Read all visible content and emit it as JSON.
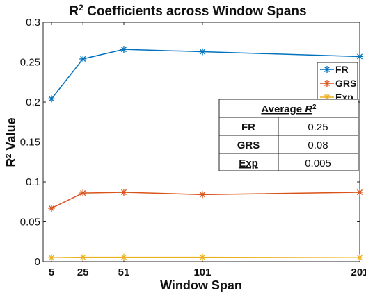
{
  "chart_data": {
    "type": "line",
    "title": "R",
    "title_sup": "2",
    "title_rest": " Coefficients across Window Spans",
    "xlabel": "Window Span",
    "ylabel": "R",
    "ylabel_sup": "2",
    "ylabel_rest": " Value",
    "x": [
      5,
      25,
      51,
      101,
      201
    ],
    "x_ticks": [
      "5",
      "25",
      "51",
      "101",
      "201"
    ],
    "ylim": [
      0,
      0.3
    ],
    "y_ticks": [
      "0",
      "0.05",
      "0.1",
      "0.15",
      "0.2",
      "0.25",
      "0.3"
    ],
    "grid": false,
    "legend_position": "top-right",
    "series": [
      {
        "name": "FR",
        "color": "#0072BD",
        "marker": "asterisk",
        "values": [
          0.204,
          0.254,
          0.266,
          0.263,
          0.257
        ]
      },
      {
        "name": "GRS",
        "color": "#D95319",
        "marker": "asterisk",
        "values": [
          0.067,
          0.086,
          0.087,
          0.084,
          0.087
        ]
      },
      {
        "name": "Exp",
        "color": "#EDB120",
        "marker": "asterisk",
        "values": [
          0.005,
          0.0055,
          0.0055,
          0.0055,
          0.005
        ]
      }
    ],
    "table": {
      "header": "Average ",
      "header_symbol": "R",
      "header_sup": "2",
      "rows": [
        {
          "label": "FR",
          "value": "0.25"
        },
        {
          "label": "GRS",
          "value": "0.08"
        },
        {
          "label": "Exp",
          "value": "0.005"
        }
      ]
    }
  }
}
